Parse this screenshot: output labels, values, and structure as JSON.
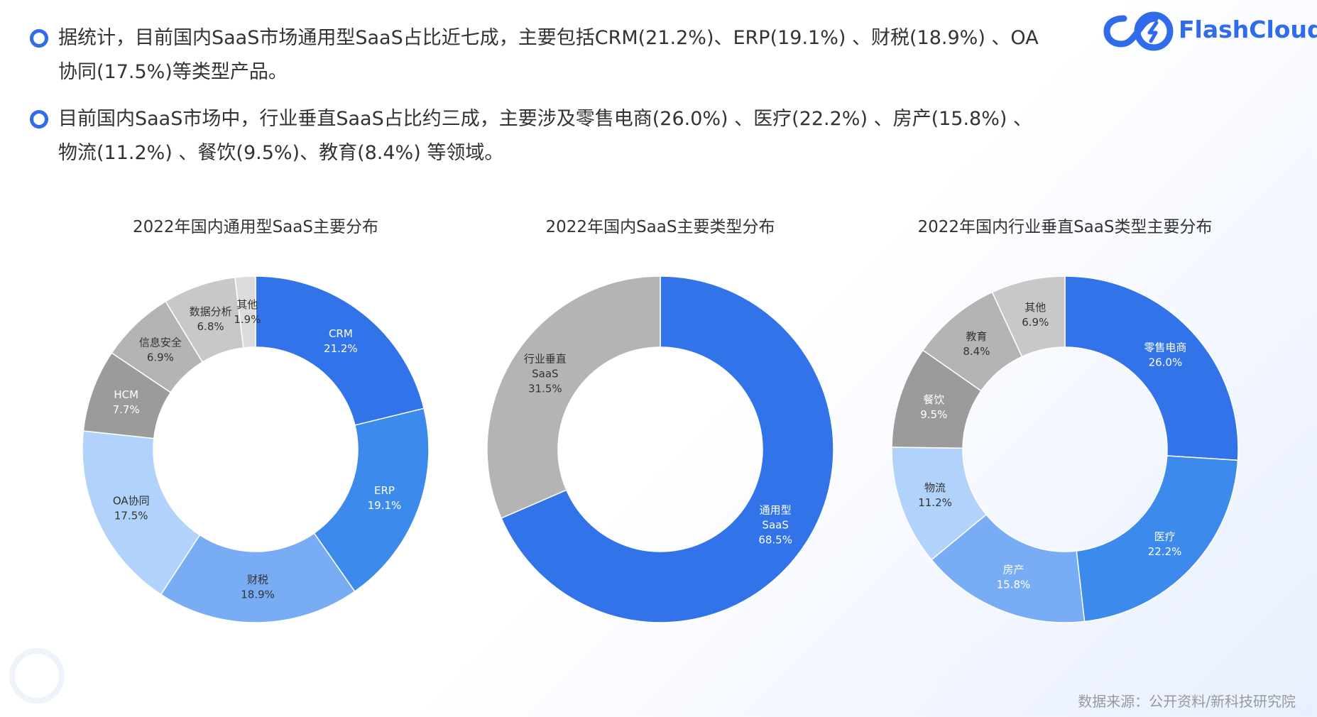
{
  "brand": {
    "name": "FlashCloud",
    "color": "#2f6bea"
  },
  "bullets": [
    {
      "text": "据统计，目前国内SaaS市场通用型SaaS占比近七成，主要包括CRM(21.2%)、ERP(19.1%) 、财税(18.9%) 、OA协同(17.5%)等类型产品。"
    },
    {
      "text": "目前国内SaaS市场中，行业垂直SaaS占比约三成，主要涉及零售电商(26.0%) 、医疗(22.2%) 、房产(15.8%) 、物流(11.2%) 、餐饮(9.5%)、教育(8.4%) 等领域。"
    }
  ],
  "source_note": "数据来源：公开资料/新科技研究院",
  "chart_data": [
    {
      "type": "pie",
      "title": "2022年国内通用型SaaS主要分布",
      "labels": [
        "CRM",
        "ERP",
        "财税",
        "OA协同",
        "HCM",
        "信息安全",
        "数据分析",
        "其他"
      ],
      "values": [
        21.2,
        19.1,
        18.9,
        17.5,
        7.7,
        6.9,
        6.8,
        1.9
      ],
      "value_labels": [
        "21.2%",
        "19.1%",
        "18.9%",
        "17.5%",
        "7.7%",
        "6.9%",
        "6.8%",
        "1.9%"
      ],
      "colors": [
        "#3373ea",
        "#3d8aed",
        "#78acf5",
        "#b1d2fb",
        "#9b9b9b",
        "#b4b4b4",
        "#c8c8c8",
        "#dcdcdc"
      ],
      "label_colors": [
        "#ffffff",
        "#ffffff",
        "#333333",
        "#333333",
        "#ffffff",
        "#333333",
        "#333333",
        "#333333"
      ]
    },
    {
      "type": "pie",
      "title": "2022年国内SaaS主要类型分布",
      "labels": [
        "通用型\nSaaS",
        "行业垂直\nSaaS"
      ],
      "values": [
        68.5,
        31.5
      ],
      "value_labels": [
        "68.5%",
        "31.5%"
      ],
      "colors": [
        "#3373ea",
        "#b4b4b4"
      ],
      "label_colors": [
        "#ffffff",
        "#333333"
      ]
    },
    {
      "type": "pie",
      "title": "2022年国内行业垂直SaaS类型主要分布",
      "labels": [
        "零售电商",
        "医疗",
        "房产",
        "物流",
        "餐饮",
        "教育",
        "其他"
      ],
      "values": [
        26.0,
        22.2,
        15.8,
        11.2,
        9.5,
        8.4,
        6.9
      ],
      "value_labels": [
        "26.0%",
        "22.2%",
        "15.8%",
        "11.2%",
        "9.5%",
        "8.4%",
        "6.9%"
      ],
      "colors": [
        "#3373ea",
        "#3d8aed",
        "#78acf5",
        "#b1d2fb",
        "#9b9b9b",
        "#b4b4b4",
        "#c8c8c8"
      ],
      "label_colors": [
        "#ffffff",
        "#ffffff",
        "#ffffff",
        "#333333",
        "#ffffff",
        "#333333",
        "#333333"
      ]
    }
  ]
}
